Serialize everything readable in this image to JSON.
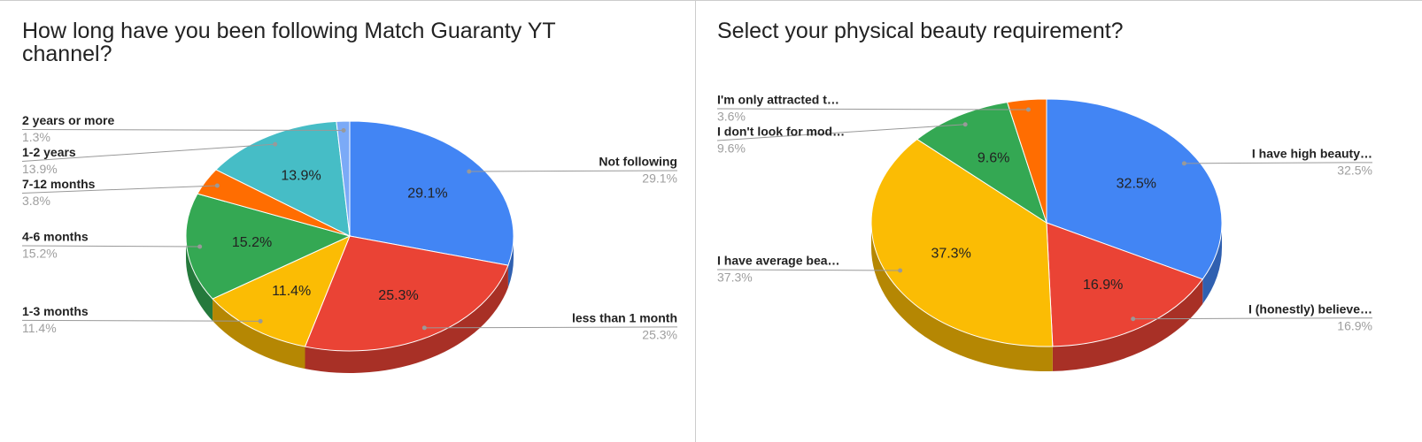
{
  "chart_data": [
    {
      "type": "pie",
      "title": "How long have you been following Match Guaranty YT channel?",
      "categories": [
        "Not following",
        "less than 1 month",
        "1-3 months",
        "4-6 months",
        "7-12 months",
        "1-2 years",
        "2 years or more"
      ],
      "values": [
        29.1,
        25.3,
        11.4,
        15.2,
        3.8,
        13.9,
        1.3
      ],
      "value_labels": [
        "29.1%",
        "25.3%",
        "11.4%",
        "15.2%",
        "3.8%",
        "13.9%",
        "1.3%"
      ],
      "colors": [
        "#4285f4",
        "#ea4335",
        "#fbbc04",
        "#34a853",
        "#ff6d01",
        "#46bdc6",
        "#7baaf7"
      ]
    },
    {
      "type": "pie",
      "title": "Select your physical beauty requirement?",
      "categories": [
        "I have high beauty…",
        "I (honestly) believe…",
        "I have average bea…",
        "I don't look for mod…",
        "I'm only attracted t…"
      ],
      "values": [
        32.5,
        16.9,
        37.3,
        9.6,
        3.6
      ],
      "value_labels": [
        "32.5%",
        "16.9%",
        "37.3%",
        "9.6%",
        "3.6%"
      ],
      "colors": [
        "#4285f4",
        "#ea4335",
        "#fbbc04",
        "#34a853",
        "#ff6d01"
      ]
    }
  ]
}
